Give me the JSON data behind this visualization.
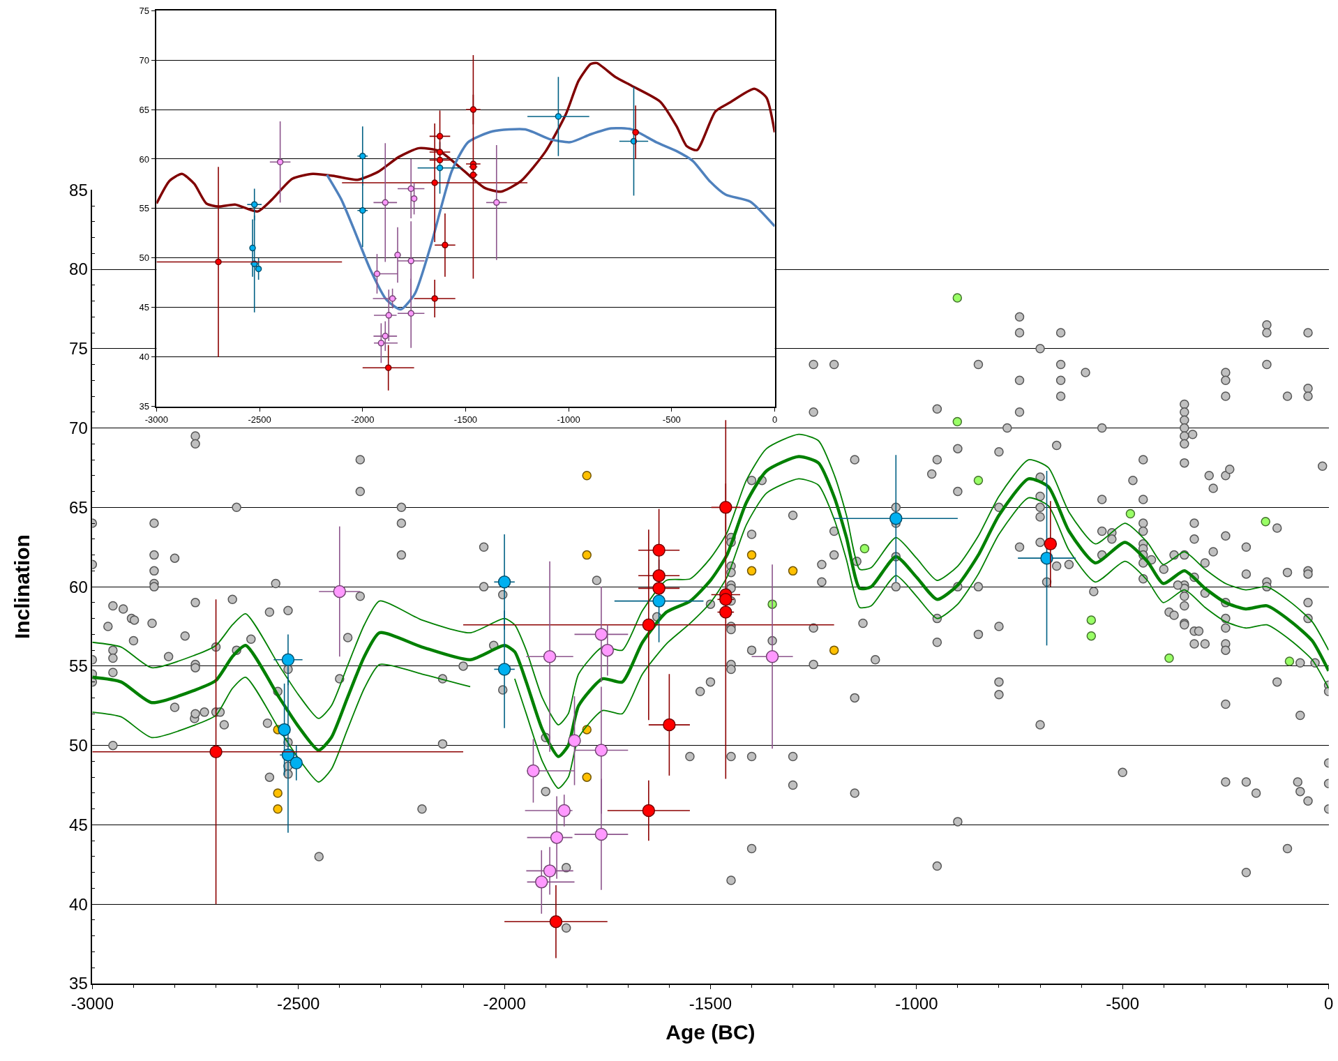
{
  "chart_data": [
    {
      "type": "scatter",
      "xlabel": "Age (BC)",
      "ylabel": "Inclination",
      "xlim": [
        -3000,
        0
      ],
      "ylim": [
        35,
        85
      ],
      "grid": "y",
      "marker": "circle",
      "xticks": [
        -3000,
        {
          "value": -2900,
          "label": null
        },
        {
          "value": -2800,
          "label": null
        },
        {
          "value": -2700,
          "label": null
        },
        {
          "value": -2600,
          "label": null
        },
        -2500,
        {
          "value": -2400,
          "label": null
        },
        {
          "value": -2300,
          "label": null
        },
        {
          "value": -2200,
          "label": null
        },
        {
          "value": -2100,
          "label": null
        },
        -2000,
        {
          "value": -1900,
          "label": null
        },
        {
          "value": -1800,
          "label": null
        },
        {
          "value": -1700,
          "label": null
        },
        {
          "value": -1600,
          "label": null
        },
        -1500,
        {
          "value": -1400,
          "label": null
        },
        {
          "value": -1300,
          "label": null
        },
        {
          "value": -1200,
          "label": null
        },
        {
          "value": -1100,
          "label": null
        },
        -1000,
        {
          "value": -900,
          "label": null
        },
        {
          "value": -800,
          "label": null
        },
        {
          "value": -700,
          "label": null
        },
        {
          "value": -600,
          "label": null
        },
        -500,
        {
          "value": -400,
          "label": null
        },
        {
          "value": -300,
          "label": null
        },
        {
          "value": -200,
          "label": null
        },
        {
          "value": -100,
          "label": null
        },
        0
      ],
      "yticks": [
        35,
        {
          "value": 36,
          "label": null
        },
        {
          "value": 37,
          "label": null
        },
        {
          "value": 38,
          "label": null
        },
        {
          "value": 39,
          "label": null
        },
        40,
        {
          "value": 41,
          "label": null
        },
        {
          "value": 42,
          "label": null
        },
        {
          "value": 43,
          "label": null
        },
        {
          "value": 44,
          "label": null
        },
        45,
        {
          "value": 46,
          "label": null
        },
        {
          "value": 47,
          "label": null
        },
        {
          "value": 48,
          "label": null
        },
        {
          "value": 49,
          "label": null
        },
        50,
        {
          "value": 51,
          "label": null
        },
        {
          "value": 52,
          "label": null
        },
        {
          "value": 53,
          "label": null
        },
        {
          "value": 54,
          "label": null
        },
        55,
        {
          "value": 56,
          "label": null
        },
        {
          "value": 57,
          "label": null
        },
        {
          "value": 58,
          "label": null
        },
        {
          "value": 59,
          "label": null
        },
        60,
        {
          "value": 61,
          "label": null
        },
        {
          "value": 62,
          "label": null
        },
        {
          "value": 63,
          "label": null
        },
        {
          "value": 64,
          "label": null
        },
        65,
        {
          "value": 66,
          "label": null
        },
        {
          "value": 67,
          "label": null
        },
        {
          "value": 68,
          "label": null
        },
        {
          "value": 69,
          "label": null
        },
        70,
        {
          "value": 71,
          "label": null
        },
        {
          "value": 72,
          "label": null
        },
        {
          "value": 73,
          "label": null
        },
        {
          "value": 74,
          "label": null
        },
        75,
        {
          "value": 76,
          "label": null
        },
        {
          "value": 77,
          "label": null
        },
        {
          "value": 78,
          "label": null
        },
        {
          "value": 79,
          "label": null
        },
        80,
        {
          "value": 81,
          "label": null
        },
        {
          "value": 82,
          "label": null
        },
        {
          "value": 83,
          "label": null
        },
        {
          "value": 84,
          "label": null
        },
        85
      ],
      "series": [
        {
          "color": "#c0c0c0",
          "x": [
            -2750,
            -2750,
            -2350,
            -2350,
            -2650,
            -2250,
            -2250,
            -2250,
            -2850,
            -2850,
            -2850,
            -2850,
            -2850,
            -2800,
            -3000,
            -3000,
            -2555,
            -2350,
            -2950,
            -2925,
            -2905,
            -2898,
            -2962,
            -2855,
            -2750,
            -2660,
            -2570,
            -2525,
            -2900,
            -2950,
            -2950,
            -2775,
            -2815,
            -2700,
            -2650,
            -2615,
            -3000,
            -3000,
            -3000,
            -2950,
            -2750,
            -2750,
            -2525,
            -2400,
            -2380,
            -2150,
            -2550,
            -2800,
            -2752,
            -2750,
            -2728,
            -2700,
            -2690,
            -2680,
            -2575,
            -2525,
            -2525,
            -2525,
            -2570,
            -2950,
            -2150,
            -2200,
            -2450,
            -2050,
            -2050,
            -2026,
            -2100,
            -2004,
            -2004,
            -1900,
            -1900,
            -1850,
            -1850,
            -1776,
            -1630,
            -1550,
            -1525,
            -1500,
            -1500,
            -1450,
            -1450,
            -1450,
            -1450,
            -1450,
            -1450,
            -1450,
            -1450,
            -1450,
            -1450,
            -1450,
            -1450,
            -1450,
            -1400,
            -1375,
            -1400,
            -1400,
            -1400,
            -1400,
            -1350,
            -1300,
            -1300,
            -1300,
            -1250,
            -1250,
            -1230,
            -1230,
            -1200,
            -1200,
            -1150,
            -1150,
            -1150,
            -1145,
            -1130,
            -1100,
            -750,
            -750,
            -650,
            -700,
            -150,
            -150,
            -50,
            -1250,
            -1200,
            -850,
            -750,
            -650,
            -650,
            -650,
            -590,
            -250,
            -250,
            -250,
            -150,
            -100,
            -50,
            -50,
            -1250,
            -950,
            -750,
            -780,
            -550,
            -350,
            -350,
            -350,
            -350,
            -350,
            -350,
            -330,
            -350,
            -950,
            -963,
            -900,
            -900,
            -800,
            -660,
            -450,
            -475,
            -550,
            -450,
            -290,
            -280,
            -250,
            -240,
            -15,
            -800,
            -700,
            -700,
            -700,
            -700,
            -1050,
            -1050,
            -1050,
            -1050,
            -950,
            -950,
            -950,
            -900,
            -900,
            -850,
            -850,
            -800,
            -800,
            -800,
            -750,
            -700,
            -684,
            -660,
            -630,
            -570,
            -550,
            -550,
            -526,
            -526,
            -500,
            -700,
            -450,
            -450,
            -450,
            -450,
            -450,
            -450,
            -450,
            -430,
            -400,
            -387,
            -375,
            -375,
            -350,
            -350,
            -350,
            -350,
            -350,
            -350,
            -350,
            -366,
            -326,
            -326,
            -326,
            -326,
            -326,
            -315,
            -300,
            -300,
            -300,
            -280,
            -250,
            -250,
            -250,
            -250,
            -250,
            -250,
            -250,
            -250,
            -200,
            -200,
            -200,
            -200,
            -176,
            -125,
            -100,
            -150,
            -150,
            -125,
            -100,
            -75,
            -69,
            -69,
            -50,
            -50,
            -50,
            -50,
            -50,
            -69,
            -33,
            0,
            0,
            0,
            0,
            0
          ],
          "values": [
            69.5,
            69,
            68,
            66,
            65,
            65,
            64,
            62,
            64,
            62,
            61,
            60.2,
            60,
            61.8,
            64,
            61.4,
            60.2,
            59.4,
            58.8,
            58.6,
            58.0,
            57.9,
            57.5,
            57.7,
            59,
            59.2,
            58.4,
            58.5,
            56.6,
            56,
            55.5,
            56.9,
            55.6,
            56.2,
            56,
            56.7,
            55.4,
            54.5,
            54,
            54.6,
            55.1,
            54.9,
            54.8,
            54.2,
            56.8,
            54.2,
            53.4,
            52.4,
            51.7,
            52,
            52.1,
            52.1,
            52.1,
            51.3,
            51.4,
            50.2,
            48.7,
            48.2,
            48.0,
            50.0,
            50.1,
            46,
            43,
            62.5,
            60,
            56.3,
            55,
            59.5,
            53.5,
            50.5,
            47.1,
            42.3,
            38.5,
            60.4,
            58.1,
            49.3,
            53.4,
            54,
            58.9,
            63.1,
            62.8,
            61.3,
            60.9,
            60.1,
            59.9,
            59.1,
            57.5,
            57.3,
            55.1,
            54.8,
            49.3,
            41.5,
            66.7,
            66.7,
            63.3,
            56,
            49.3,
            43.5,
            56.6,
            64.5,
            49.3,
            47.5,
            57.4,
            55.1,
            61.4,
            60.3,
            63.5,
            62,
            68,
            53,
            47,
            61.6,
            57.7,
            55.4,
            77,
            76,
            76,
            75,
            76.5,
            76,
            76,
            74,
            74,
            74,
            73,
            74,
            73,
            72,
            73.5,
            73.5,
            73,
            72,
            74,
            72,
            72.5,
            72,
            71,
            71.2,
            71,
            70,
            70,
            71.5,
            71,
            70.5,
            70,
            69.5,
            69,
            69.6,
            67.8,
            68,
            67.1,
            68.7,
            66,
            68.5,
            68.9,
            68,
            66.7,
            65.5,
            65.5,
            67,
            66.2,
            67,
            67.4,
            67.6,
            65,
            66.9,
            65.7,
            65,
            64.4,
            65,
            64,
            61.9,
            60,
            58,
            56.5,
            42.4,
            60,
            45.2,
            60,
            57,
            57.5,
            54,
            53.2,
            62.5,
            62.8,
            60.3,
            61.3,
            61.4,
            59.7,
            63.5,
            62,
            63.4,
            63,
            48.3,
            51.3,
            64,
            63.5,
            62.7,
            62.4,
            62,
            61.5,
            60.5,
            61.7,
            61.1,
            58.4,
            58.2,
            62,
            62,
            60.1,
            59.9,
            59.4,
            58.8,
            57.7,
            57.6,
            60.1,
            64,
            63,
            60.6,
            57.2,
            56.4,
            57.2,
            56.4,
            61.5,
            59.6,
            62.2,
            63.2,
            59,
            58,
            57.4,
            56.4,
            56,
            52.6,
            47.7,
            62.5,
            60.8,
            47.7,
            42,
            47,
            63.7,
            60.9,
            60.3,
            60,
            54,
            43.5,
            47.7,
            47.1,
            51.9,
            46.5,
            61,
            60.8,
            59,
            58,
            55.2,
            55.2,
            53.8,
            53.4,
            48.9,
            47.6,
            46
          ]
        },
        {
          "color": "#ffc000",
          "x": [
            -2550,
            -2550,
            -2550,
            -1800,
            -1800,
            -1800,
            -1800,
            -1400,
            -1400,
            -1300,
            -1200
          ],
          "values": [
            51.0,
            47,
            46,
            67,
            62,
            51,
            48,
            62,
            61,
            61,
            56
          ]
        },
        {
          "color": "#99ff66",
          "x": [
            -901,
            -901,
            -850,
            -1126,
            -481,
            -576,
            -576,
            -387,
            -153,
            -95,
            -1350
          ],
          "values": [
            78.2,
            70.4,
            66.7,
            62.4,
            64.6,
            57.9,
            56.9,
            55.5,
            64.1,
            55.3,
            58.9
          ]
        },
        {
          "type": "line",
          "marker": "none",
          "color": "#008000",
          "x": [
            -3000,
            -2930,
            -2856,
            -2750,
            -2700,
            -2660,
            -2628,
            -2546,
            -2500,
            -2451,
            -2420,
            -2381,
            -2340,
            -2303,
            -2200,
            -2083,
            -2000,
            -1975,
            -1947,
            -1908,
            -1869,
            -1845,
            -1820,
            -1762,
            -1714,
            -1665,
            -1607,
            -1549,
            -1500,
            -1460,
            -1413,
            -1364,
            -1286,
            -1238,
            -1199,
            -1170,
            -1138,
            -1110,
            -1050,
            -1000,
            -950,
            -900,
            -850,
            -800,
            -728,
            -680,
            -630,
            -566,
            -494,
            -440,
            -401,
            -350,
            -300,
            -250,
            -201,
            -150,
            -91,
            -40,
            0
          ],
          "values": [
            54.3,
            54.0,
            52.7,
            53.5,
            54.1,
            55.6,
            56.3,
            53.0,
            51.2,
            49.7,
            50.5,
            53.0,
            55.6,
            57.1,
            56.2,
            55.4,
            56.3,
            55.9,
            54.0,
            51.0,
            49.3,
            50.0,
            52.5,
            54.2,
            54.0,
            56.5,
            58.4,
            59.1,
            60.4,
            62.0,
            65.3,
            67.3,
            68.2,
            67.8,
            65.6,
            63.1,
            59.9,
            60.0,
            61.9,
            60.6,
            59.2,
            60.1,
            62.0,
            64.5,
            66.8,
            66.3,
            63.5,
            61.5,
            62.8,
            61.6,
            60.2,
            61.0,
            59.9,
            59.0,
            58.6,
            58.8,
            57.8,
            56.6,
            54.7
          ]
        },
        {
          "type": "line",
          "marker": "none",
          "color": "#008000",
          "x": [
            -3000,
            -2930,
            -2856,
            -2750,
            -2700,
            -2660,
            -2628,
            -2546,
            -2500,
            -2451,
            -2420,
            -2381,
            -2340,
            -2303,
            -2200,
            -2083,
            -2000,
            -1975,
            -1947,
            -1908,
            -1869,
            -1845,
            -1820,
            -1762,
            -1714,
            -1665,
            -1607,
            -1549,
            -1500,
            -1460,
            -1413,
            -1364,
            -1286,
            -1238,
            -1199,
            -1170,
            -1138,
            -1110,
            -1050,
            -1000,
            -950,
            -900,
            -850,
            -800,
            -728,
            -680,
            -630,
            -566,
            -494,
            -440,
            -401,
            -350,
            -300,
            -250,
            -201,
            -150,
            -91,
            -40,
            0
          ],
          "values": [
            56.5,
            56.2,
            54.9,
            55.7,
            56.3,
            57.6,
            58.3,
            55.0,
            53.2,
            51.7,
            52.5,
            55.0,
            57.6,
            59.1,
            57.9,
            57.1,
            58.0,
            57.6,
            56.0,
            53.0,
            51.3,
            52.0,
            54.5,
            56.2,
            56.0,
            58.5,
            60.4,
            60.5,
            61.8,
            63.4,
            66.7,
            68.7,
            69.6,
            69.2,
            67.0,
            64.5,
            61.1,
            61.2,
            63.1,
            61.8,
            60.4,
            61.3,
            63.2,
            65.7,
            68.0,
            67.5,
            64.7,
            62.7,
            64.0,
            62.8,
            61.4,
            62.2,
            61.1,
            60.2,
            59.8,
            60.0,
            59.0,
            57.8,
            56.0
          ]
        },
        {
          "type": "line",
          "marker": "none",
          "color": "#008000",
          "x": [
            -3000,
            -2930,
            -2856,
            -2750,
            -2700,
            -2660,
            -2628,
            -2546,
            -2500,
            -2451,
            -2420,
            -2381,
            -2340,
            -2303,
            -2200,
            -2083,
            -2000,
            -1975,
            -1947,
            -1908,
            -1869,
            -1845,
            -1820,
            -1762,
            -1714,
            -1665,
            -1607,
            -1549,
            -1500,
            -1460,
            -1413,
            -1364,
            -1286,
            -1238,
            -1199,
            -1170,
            -1138,
            -1110,
            -1050,
            -1000,
            -950,
            -900,
            -850,
            -800,
            -728,
            -680,
            -630,
            -566,
            -494,
            -440,
            -401,
            -350,
            -300,
            -250,
            -201,
            -150,
            -91,
            -40,
            0
          ],
          "values": [
            52.1,
            51.8,
            50.5,
            51.3,
            51.9,
            53.6,
            54.3,
            51.0,
            49.2,
            47.7,
            48.5,
            51.0,
            53.6,
            55.1,
            54.5,
            53.7,
            null,
            54.2,
            52.0,
            49.0,
            47.3,
            48.0,
            50.5,
            52.2,
            52.0,
            54.5,
            56.4,
            57.7,
            59.0,
            60.6,
            63.9,
            65.9,
            66.8,
            66.4,
            64.2,
            61.7,
            58.7,
            58.8,
            60.7,
            59.4,
            58.0,
            58.9,
            60.8,
            63.3,
            65.6,
            65.1,
            62.3,
            60.3,
            61.6,
            60.4,
            59.0,
            59.8,
            58.7,
            57.8,
            57.4,
            57.6,
            56.6,
            55.4,
            53.6
          ]
        },
        {
          "color": "#00b0f0",
          "x": [
            -2525,
            -2534,
            -2525,
            -2505,
            -2000,
            -2000,
            -1625,
            -1050,
            -684
          ],
          "values": [
            55.4,
            51.0,
            49.4,
            48.9,
            60.3,
            54.8,
            59.1,
            64.3,
            61.8
          ],
          "errors": [
            1.6,
            2.9,
            4.9,
            1.1,
            3.0,
            3.7,
            2.6,
            4.0,
            5.5
          ],
          "xerrors": [
            35,
            null,
            20,
            null,
            25,
            25,
            108,
            150,
            70
          ]
        },
        {
          "color": "#ff0000",
          "x": [
            -2700,
            -1875,
            -1650,
            -1625,
            -1625,
            -1625,
            -1600,
            -1650,
            -1463,
            -1463,
            -1463,
            -1463,
            -675
          ],
          "values": [
            49.6,
            38.9,
            57.6,
            62.3,
            60.7,
            59.9,
            51.3,
            45.9,
            65.0,
            59.5,
            59.2,
            58.4,
            62.7
          ],
          "errors": [
            9.6,
            2.3,
            6,
            2.6,
            null,
            null,
            3.2,
            1.9,
            1.5,
            null,
            11.3,
            null,
            2.7
          ],
          "xerrors": [
            [
              -3000,
              -2100
            ],
            125,
            450,
            50,
            50,
            50,
            50,
            100,
            35,
            35,
            20,
            20,
            15
          ]
        },
        {
          "color": "#ff99ff",
          "x": [
            -2400,
            -1890,
            -1765,
            -1750,
            -1830,
            -1765,
            -1765,
            -1930,
            -1855,
            -1873,
            -1890,
            -1910,
            -1350
          ],
          "values": [
            59.7,
            55.6,
            57.0,
            56.0,
            50.3,
            49.7,
            44.4,
            48.4,
            45.9,
            44.2,
            42.1,
            41.4,
            55.6
          ],
          "errors": [
            4.1,
            6,
            3,
            1.6,
            2.8,
            4,
            3.5,
            2,
            1,
            2.6,
            1.5,
            2,
            5.8
          ],
          "xerrors": [
            50,
            57,
            65,
            null,
            null,
            65,
            65,
            [
              -1945,
              -1830
            ],
            [
              -1950,
              -1835
            ],
            [
              -1945,
              -1835
            ],
            57,
            [
              -1945,
              -1830
            ],
            50
          ]
        }
      ]
    },
    {
      "type": "scatter",
      "xlim": [
        -3000,
        0
      ],
      "ylim": [
        35,
        75
      ],
      "grid": "y",
      "marker": "circle",
      "xticks": [
        -3000,
        -2500,
        -2000,
        -1500,
        -1000,
        -500,
        0
      ],
      "yticks": [
        35,
        40,
        45,
        50,
        55,
        60,
        65,
        70,
        75
      ],
      "series": [
        {
          "type": "line",
          "marker": "none",
          "color": "#800000",
          "x": [
            -3000,
            -2937,
            -2877,
            -2817,
            -2758,
            -2698,
            -2619,
            -2510,
            -2440,
            -2341,
            -2242,
            -2143,
            -2024,
            -1925,
            -1825,
            -1726,
            -1627,
            -1508,
            -1409,
            -1329,
            -1230,
            -1111,
            -1012,
            -952,
            -893,
            -863,
            -774,
            -694,
            -556,
            -476,
            -427,
            -377,
            -288,
            -218,
            -99,
            -40,
            0
          ],
          "values": [
            55.5,
            57.8,
            58.5,
            57.5,
            55.5,
            55.2,
            55.4,
            54.7,
            55.9,
            58.0,
            58.5,
            58.3,
            57.9,
            58.7,
            60.2,
            61.1,
            60.8,
            58.8,
            57.1,
            56.7,
            57.8,
            60.8,
            64.6,
            67.9,
            69.6,
            69.7,
            68.3,
            67.4,
            65.8,
            63.3,
            61.3,
            60.9,
            64.8,
            65.7,
            67.1,
            66.2,
            62.7
          ]
        },
        {
          "type": "line",
          "marker": "none",
          "color": "#4f81bd",
          "x": [
            -2173,
            -2103,
            -2044,
            -1964,
            -1885,
            -1815,
            -1746,
            -1667,
            -1567,
            -1488,
            -1369,
            -1210,
            -1091,
            -992,
            -893,
            -794,
            -694,
            -575,
            -476,
            -397,
            -317,
            -238,
            -119,
            0
          ],
          "values": [
            58.4,
            55.9,
            53.0,
            48.9,
            45.8,
            44.8,
            46.4,
            51.4,
            58.8,
            61.7,
            62.8,
            63.0,
            62.0,
            61.7,
            62.5,
            63.1,
            63.0,
            61.7,
            60.8,
            59.8,
            57.8,
            56.4,
            55.7,
            53.2
          ]
        },
        {
          "color": "#00b0f0",
          "x": [
            -2525,
            -2534,
            -2525,
            -2505,
            -2000,
            -2000,
            -1625,
            -1050,
            -684
          ],
          "values": [
            55.4,
            51.0,
            49.4,
            48.9,
            60.3,
            54.8,
            59.1,
            64.3,
            61.8
          ],
          "errors": [
            1.6,
            2.9,
            4.9,
            1.1,
            3.0,
            3.7,
            2.6,
            4.0,
            5.5
          ],
          "xerrors": [
            35,
            null,
            20,
            null,
            25,
            25,
            108,
            150,
            70
          ]
        },
        {
          "color": "#ff0000",
          "x": [
            -2700,
            -1875,
            -1650,
            -1625,
            -1625,
            -1625,
            -1600,
            -1650,
            -1463,
            -1463,
            -1463,
            -1463,
            -675
          ],
          "values": [
            49.6,
            38.9,
            57.6,
            62.3,
            60.7,
            59.9,
            51.3,
            45.9,
            65.0,
            59.5,
            59.2,
            58.4,
            62.7
          ],
          "errors": [
            9.6,
            2.3,
            6,
            2.6,
            null,
            null,
            3.2,
            1.9,
            1.5,
            null,
            11.3,
            null,
            2.7
          ],
          "xerrors": [
            [
              -3000,
              -2100
            ],
            125,
            450,
            50,
            50,
            50,
            50,
            100,
            35,
            35,
            20,
            20,
            15
          ]
        },
        {
          "color": "#ff99ff",
          "x": [
            -2400,
            -1890,
            -1765,
            -1750,
            -1830,
            -1765,
            -1765,
            -1930,
            -1855,
            -1873,
            -1890,
            -1910,
            -1350
          ],
          "values": [
            59.7,
            55.6,
            57.0,
            56.0,
            50.3,
            49.7,
            44.4,
            48.4,
            45.9,
            44.2,
            42.1,
            41.4,
            55.6
          ],
          "errors": [
            4.1,
            6,
            3,
            1.6,
            2.8,
            4,
            3.5,
            2,
            1,
            2.6,
            1.5,
            2,
            5.8
          ],
          "xerrors": [
            50,
            57,
            65,
            null,
            null,
            65,
            65,
            [
              -1945,
              -1830
            ],
            [
              -1950,
              -1835
            ],
            [
              -1945,
              -1835
            ],
            57,
            [
              -1945,
              -1830
            ],
            50
          ]
        }
      ]
    }
  ]
}
